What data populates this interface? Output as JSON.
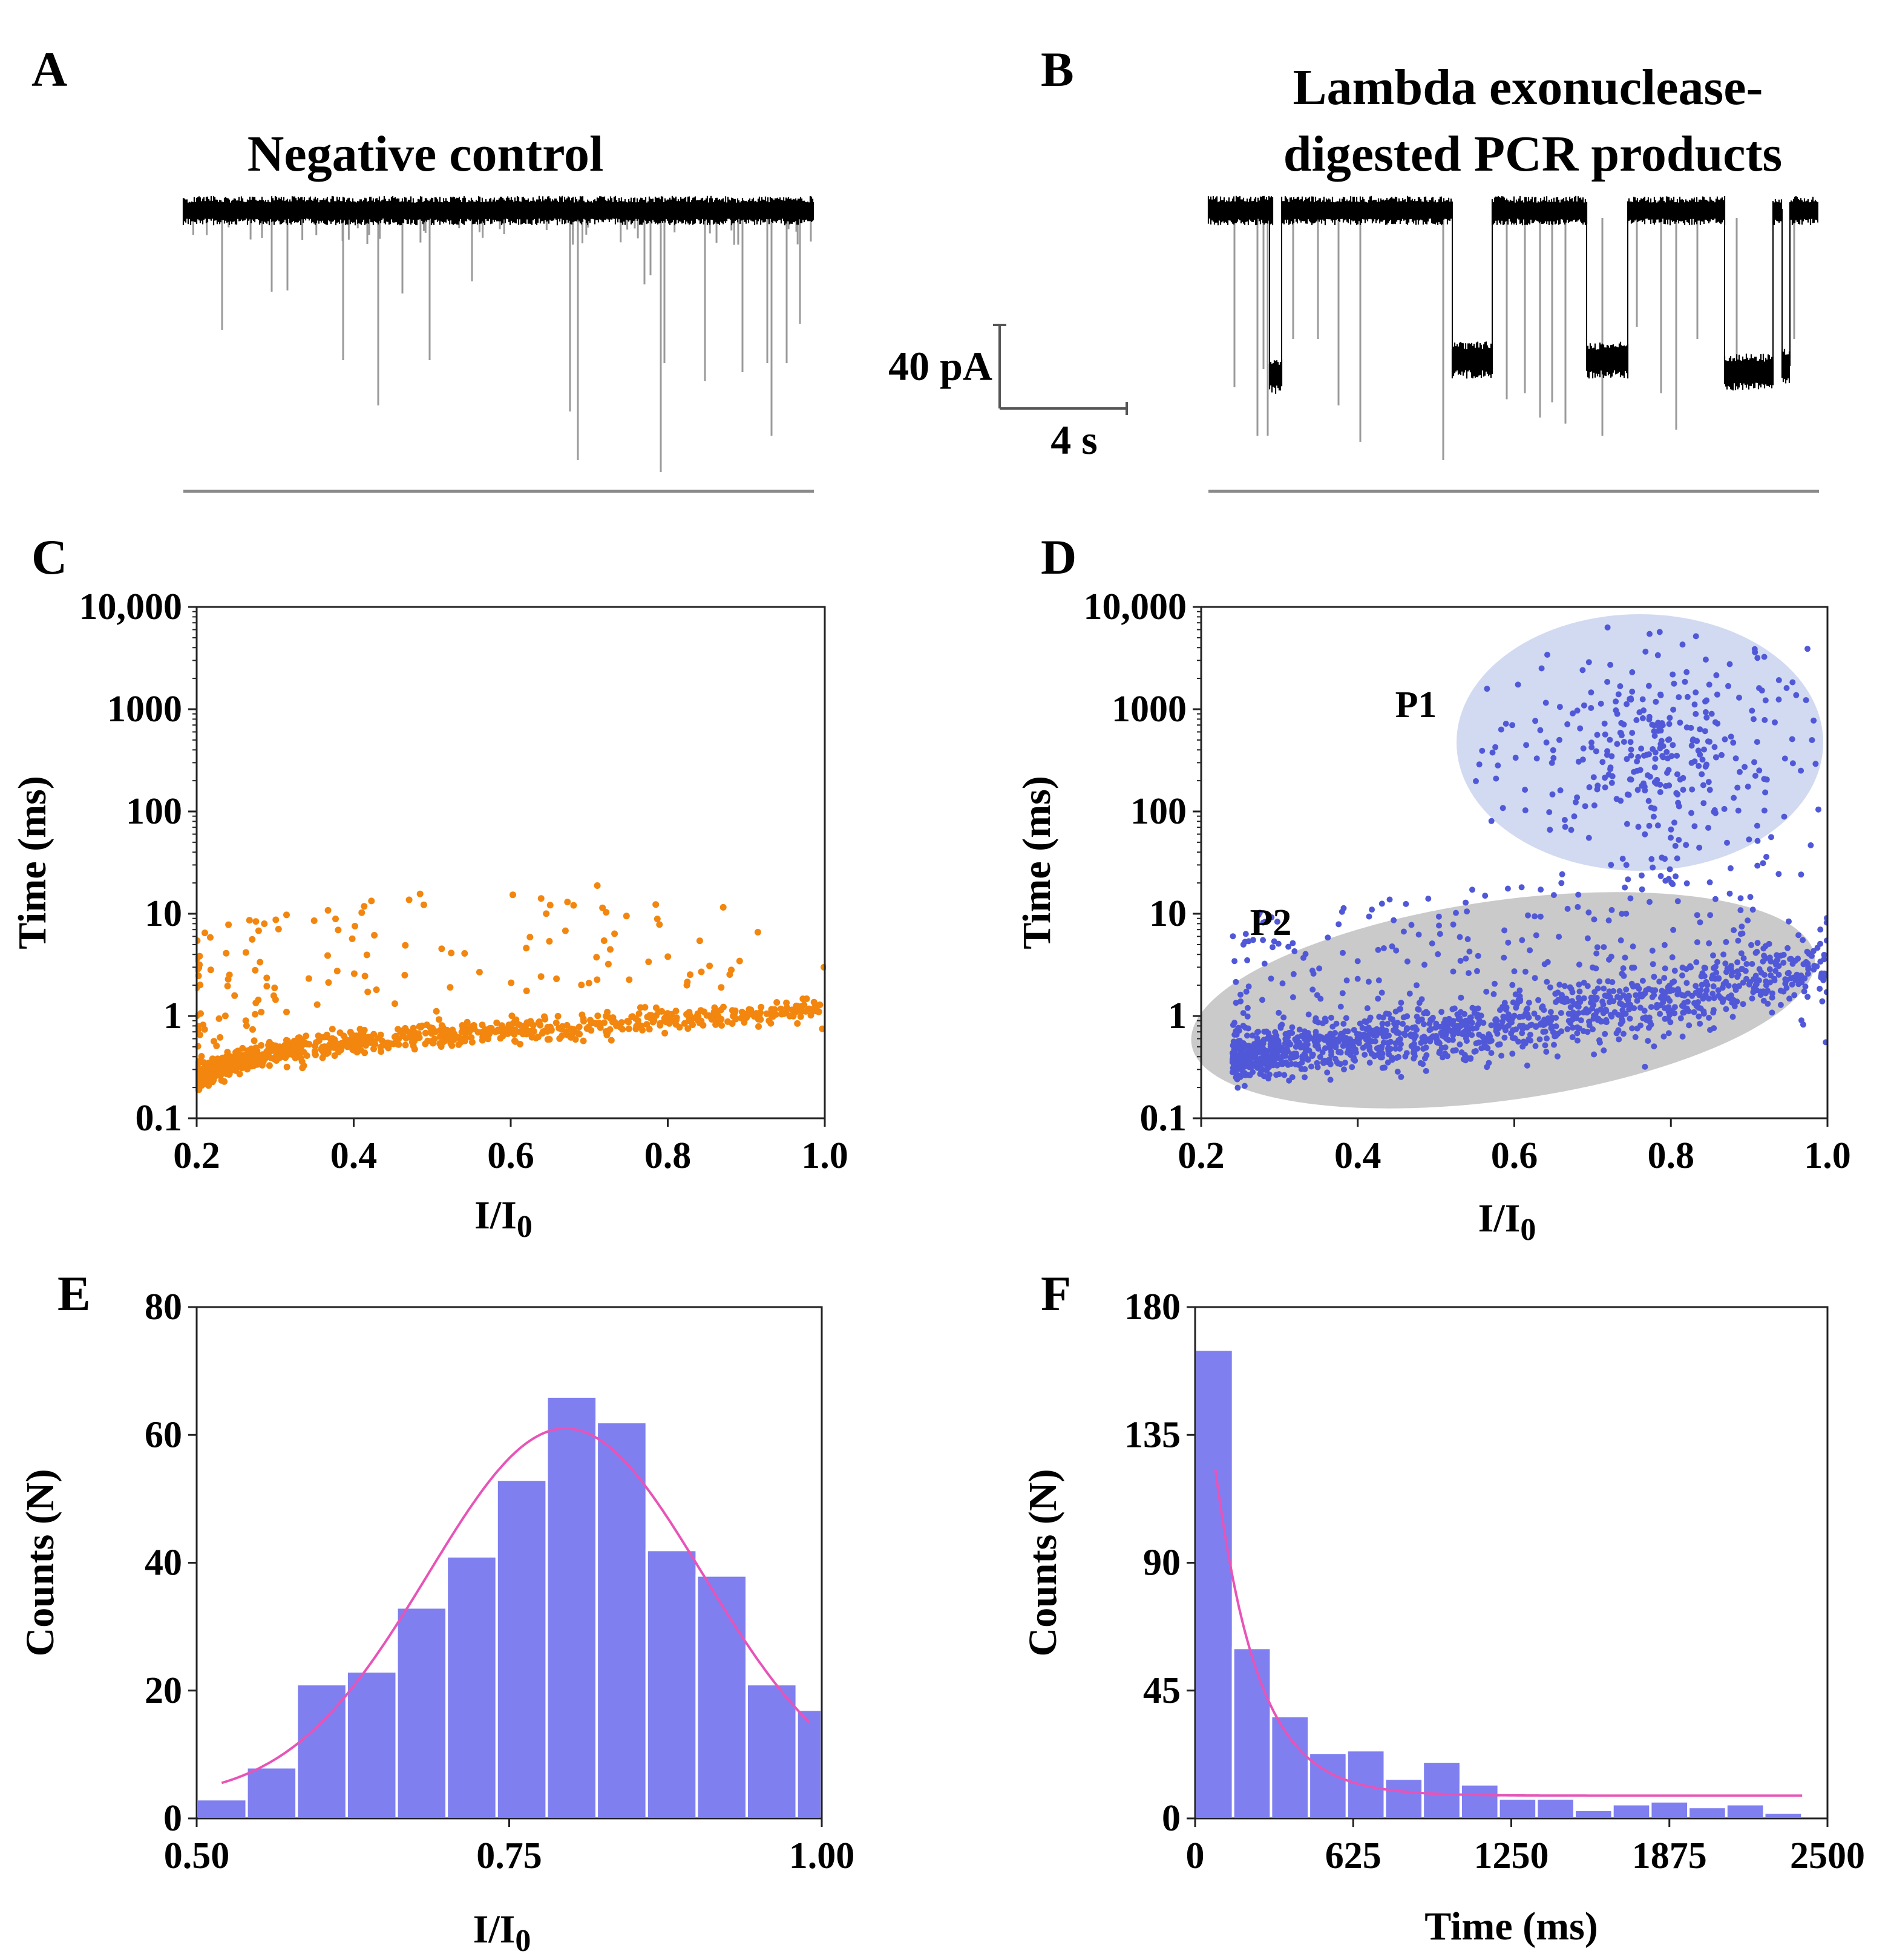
{
  "figure": {
    "bar_color": "#7f7ff0",
    "bar_stroke": "#ffffff",
    "fit_color": "#e754b8",
    "orange": "#f2860e",
    "blue": "#5058d8",
    "trace_color": "#000000",
    "spike_color": "#9a9a9a"
  },
  "panels": {
    "A": {
      "letter": "A",
      "title": "Negative control"
    },
    "B": {
      "letter": "B",
      "title_line1": "Lambda exonuclease-",
      "title_line2": "digested PCR products"
    },
    "scale": {
      "current": "40 pA",
      "time": "4 s"
    },
    "C": {
      "letter": "C"
    },
    "D": {
      "letter": "D",
      "label_p1": "P1",
      "label_p2": "P2"
    },
    "E": {
      "letter": "E"
    },
    "F": {
      "letter": "F"
    }
  },
  "chart_data": [
    {
      "id": "C",
      "type": "scatter",
      "title": "",
      "xlabel": "I/I",
      "xlabel_sub": "0",
      "ylabel": "Time (ms)",
      "xlim": [
        0.2,
        1.0
      ],
      "ylim": [
        0.1,
        10000
      ],
      "yscale": "log",
      "xticks": [
        "0.2",
        "0.4",
        "0.6",
        "0.8",
        "1.0"
      ],
      "xtick_values": [
        0.2,
        0.4,
        0.6,
        0.8,
        1.0
      ],
      "yticks": [
        "0.1",
        "1",
        "10",
        "100",
        "1000",
        "10,000"
      ],
      "ytick_values": [
        0.1,
        1,
        10,
        100,
        1000,
        10000
      ],
      "color": "#f2860e",
      "series_description": "main band rising from ~0.25 ms at I/I0 0.2 to ~1.1 ms at 1.0, scatter up to ~20 ms",
      "trend": {
        "x": [
          0.2,
          0.3,
          0.4,
          0.5,
          0.6,
          0.7,
          0.8,
          0.9,
          1.0
        ],
        "y": [
          0.25,
          0.45,
          0.55,
          0.65,
          0.72,
          0.8,
          0.9,
          1.0,
          1.2
        ]
      },
      "n_points": 1000
    },
    {
      "id": "D",
      "type": "scatter",
      "title": "",
      "xlabel": "I/I",
      "xlabel_sub": "0",
      "ylabel": "Time (ms)",
      "xlim": [
        0.2,
        1.0
      ],
      "ylim": [
        0.1,
        10000
      ],
      "yscale": "log",
      "xticks": [
        "0.2",
        "0.4",
        "0.6",
        "0.8",
        "1.0"
      ],
      "xtick_values": [
        0.2,
        0.4,
        0.6,
        0.8,
        1.0
      ],
      "yticks": [
        "0.1",
        "1",
        "10",
        "100",
        "1000",
        "10,000"
      ],
      "ytick_values": [
        0.1,
        1,
        10,
        100,
        1000,
        10000
      ],
      "color": "#5058d8",
      "populations": [
        {
          "name": "P1",
          "center_x": 0.77,
          "center_y": 400,
          "spread_x": 0.09,
          "spread_logy": 0.5,
          "n": 320,
          "ellipse_color": "#c9d3ef"
        },
        {
          "name": "P2",
          "trend_x": [
            0.25,
            0.4,
            0.6,
            0.8,
            1.0
          ],
          "trend_y": [
            0.4,
            0.55,
            0.8,
            1.5,
            3.0
          ],
          "n": 1500,
          "ellipse_color": "#c7c7c7"
        }
      ]
    },
    {
      "id": "E",
      "type": "bar",
      "title": "",
      "xlabel": "I/I",
      "xlabel_sub": "0",
      "ylabel": "Counts (N)",
      "xlim": [
        0.5,
        1.0
      ],
      "ylim": [
        0,
        80
      ],
      "xticks": [
        "0.50",
        "0.75",
        "1.00"
      ],
      "xtick_values": [
        0.5,
        0.75,
        1.0
      ],
      "yticks": [
        "0",
        "20",
        "40",
        "60",
        "80"
      ],
      "ytick_values": [
        0,
        20,
        40,
        60,
        80
      ],
      "bin_width": 0.04,
      "bin_centers": [
        0.52,
        0.56,
        0.6,
        0.64,
        0.68,
        0.72,
        0.76,
        0.8,
        0.84,
        0.88,
        0.92,
        0.96,
        1.0
      ],
      "values": [
        3,
        8,
        21,
        23,
        33,
        41,
        53,
        66,
        62,
        42,
        38,
        21,
        17
      ],
      "fit": {
        "type": "gaussian",
        "baseline": 3,
        "amplitude": 58,
        "center": 0.795,
        "sigma": 0.11,
        "x_range": [
          0.52,
          0.99
        ]
      }
    },
    {
      "id": "F",
      "type": "bar",
      "title": "",
      "xlabel": "Time (ms)",
      "ylabel": "Counts (N)",
      "xlim": [
        0,
        2500
      ],
      "ylim": [
        0,
        180
      ],
      "xticks": [
        "0",
        "625",
        "1250",
        "1875",
        "2500"
      ],
      "xtick_values": [
        0,
        625,
        1250,
        1875,
        2500
      ],
      "yticks": [
        "0",
        "45",
        "90",
        "135",
        "180"
      ],
      "ytick_values": [
        0,
        45,
        90,
        135,
        180
      ],
      "bin_width": 150,
      "bin_centers": [
        75,
        225,
        375,
        525,
        675,
        825,
        975,
        1125,
        1275,
        1425,
        1575,
        1725,
        1875,
        2025,
        2175,
        2325,
        2475
      ],
      "values": [
        165,
        60,
        36,
        23,
        24,
        14,
        20,
        12,
        7,
        7,
        3,
        5,
        6,
        4,
        5,
        2,
        0
      ],
      "fit": {
        "type": "exponential",
        "baseline": 8,
        "amplitude": 184,
        "tau": 170,
        "x0": 0,
        "x_range": [
          80,
          2400
        ]
      }
    }
  ]
}
